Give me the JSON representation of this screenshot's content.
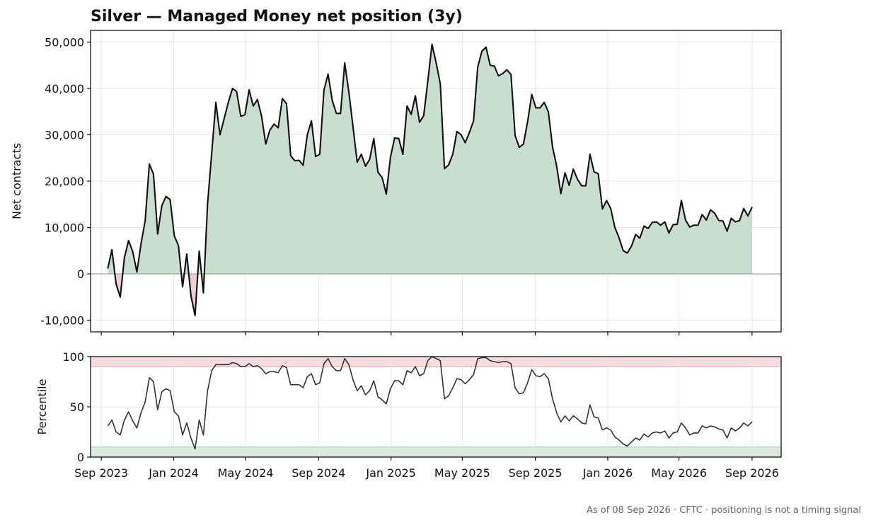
{
  "chart_data": [
    {
      "type": "area",
      "title": "Silver — Managed Money net position (3y)",
      "ylabel": "Net contracts",
      "xlabel": "",
      "ylim": [
        -12500,
        52500
      ],
      "yticks": [
        -10000,
        0,
        10000,
        20000,
        30000,
        40000,
        50000
      ],
      "ytick_labels": [
        "-10,000",
        "0",
        "10,000",
        "20,000",
        "30,000",
        "40,000",
        "50,000"
      ],
      "x_start": "2023-09-12",
      "x_step_days": 7,
      "xlim": [
        "2023-08-14",
        "2026-10-20"
      ],
      "grid": true,
      "fill_colors": {
        "positive": "#c9ddd1",
        "negative": "#f0cdd3"
      },
      "line_color": "#111111",
      "zero_line_color": "#999999",
      "values": [
        1200,
        5200,
        -2200,
        -5000,
        3500,
        7200,
        4800,
        400,
        6500,
        11500,
        23700,
        21500,
        8600,
        14700,
        16700,
        16000,
        8200,
        6100,
        -2800,
        4300,
        -4700,
        -9000,
        4900,
        -4100,
        15000,
        26000,
        37000,
        30000,
        33500,
        37000,
        40000,
        39300,
        34000,
        34300,
        39700,
        36200,
        37600,
        34000,
        28000,
        31000,
        32300,
        31500,
        37800,
        36700,
        25500,
        24400,
        24500,
        23400,
        30000,
        33000,
        25300,
        25800,
        39600,
        43100,
        37400,
        34600,
        34600,
        45500,
        39200,
        31700,
        24100,
        25800,
        23200,
        24700,
        29200,
        21900,
        20800,
        17200,
        25100,
        29300,
        29200,
        25800,
        36200,
        34400,
        38400,
        32700,
        34100,
        41600,
        49500,
        45500,
        41000,
        22700,
        23500,
        25800,
        30700,
        30000,
        28300,
        30500,
        33000,
        44600,
        48000,
        48900,
        45000,
        44800,
        42700,
        43200,
        44000,
        43000,
        29800,
        27300,
        28000,
        32800,
        38700,
        35800,
        35800,
        37000,
        34900,
        27400,
        23200,
        17300,
        21800,
        19100,
        22600,
        20400,
        19000,
        19000,
        25800,
        22000,
        21600,
        14000,
        15800,
        14100,
        10000,
        7800,
        5000,
        4500,
        6000,
        8500,
        7700,
        10300,
        9800,
        11100,
        11200,
        10500,
        11200,
        8800,
        10600,
        10700,
        15800,
        11600,
        10100,
        10500,
        10500,
        12800,
        11600,
        13800,
        13100,
        11500,
        11400,
        9200,
        12000,
        11200,
        11500,
        14100,
        12500,
        14400
      ]
    },
    {
      "type": "line",
      "ylabel": "Percentile",
      "xlabel": "",
      "ylim": [
        0,
        100
      ],
      "yticks": [
        0,
        50,
        100
      ],
      "ytick_labels": [
        "0",
        "50",
        "100"
      ],
      "x_start": "2023-09-12",
      "x_step_days": 7,
      "xlim": [
        "2023-08-14",
        "2026-10-20"
      ],
      "grid": true,
      "bands": [
        {
          "from": 90,
          "to": 100,
          "color": "#f5dde1",
          "edge": "#e3a9b3"
        },
        {
          "from": 0,
          "to": 10,
          "color": "#dbe9e0",
          "edge": "#a9cbb6"
        }
      ],
      "line_color": "#333333",
      "xtick_labels": [
        "Sep 2023",
        "Jan 2024",
        "May 2024",
        "Sep 2024",
        "Jan 2025",
        "May 2025",
        "Sep 2025",
        "Jan 2026",
        "May 2026",
        "Sep 2026"
      ],
      "xtick_dates": [
        "2023-09-01",
        "2024-01-01",
        "2024-05-01",
        "2024-09-01",
        "2025-01-01",
        "2025-05-01",
        "2025-09-01",
        "2026-01-01",
        "2026-05-01",
        "2026-09-01"
      ],
      "values": [
        31,
        37,
        25,
        22,
        37,
        45,
        36,
        29,
        44,
        55,
        79,
        75,
        47,
        65,
        68,
        66,
        45,
        41,
        22,
        34,
        19,
        8,
        37,
        22,
        66,
        86,
        92,
        92,
        92,
        92,
        94,
        93,
        90,
        90,
        93,
        90,
        91,
        88,
        83,
        85,
        85,
        84,
        91,
        89,
        72,
        72,
        72,
        69,
        80,
        83,
        72,
        74,
        93,
        98,
        90,
        86,
        86,
        98,
        92,
        77,
        66,
        71,
        62,
        66,
        76,
        60,
        57,
        53,
        68,
        76,
        76,
        72,
        86,
        84,
        90,
        81,
        83,
        96,
        100,
        98,
        96,
        58,
        61,
        69,
        78,
        77,
        73,
        77,
        82,
        98,
        99,
        99,
        96,
        95,
        94,
        95,
        95,
        93,
        69,
        63,
        64,
        74,
        87,
        81,
        80,
        83,
        78,
        58,
        44,
        35,
        41,
        36,
        41,
        38,
        34,
        33,
        52,
        40,
        39,
        27,
        29,
        27,
        20,
        17,
        13,
        11,
        15,
        19,
        17,
        23,
        20,
        24,
        25,
        24,
        26,
        19,
        24,
        25,
        34,
        29,
        22,
        24,
        24,
        31,
        29,
        31,
        30,
        28,
        27,
        19,
        29,
        26,
        29,
        34,
        31,
        35
      ]
    }
  ],
  "footer": "As of 08 Sep 2026 · CFTC · positioning is not a timing signal"
}
